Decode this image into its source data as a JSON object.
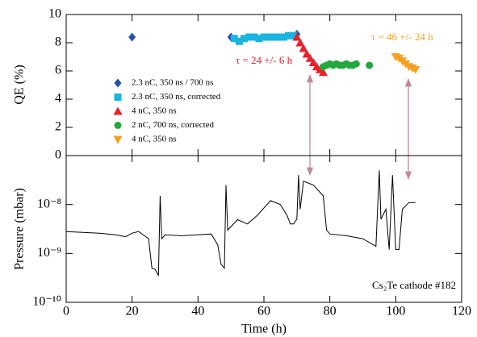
{
  "chart_data": [
    {
      "type": "scatter",
      "ylabel": "QE (%)",
      "xlim": [
        0,
        120
      ],
      "ylim": [
        0,
        10
      ],
      "yticks": [
        0,
        2,
        4,
        6,
        8,
        10
      ],
      "legend": "upper left",
      "series": [
        {
          "name": "2.3 nC, 350 ns / 700 ns",
          "color": "#2a4fa8",
          "marker": "diamond",
          "x": [
            20,
            50,
            70
          ],
          "values": [
            8.4,
            8.4,
            8.6
          ]
        },
        {
          "name": "2.3 nC, 350 ns, corrected",
          "color": "#1ab4e0",
          "marker": "square",
          "x": [
            51,
            52.5,
            54,
            55.5,
            57,
            58.5,
            60,
            61.5,
            63,
            64.5,
            66,
            67.5,
            69
          ],
          "values": [
            8.3,
            8.1,
            8.3,
            8.4,
            8.4,
            8.3,
            8.4,
            8.4,
            8.4,
            8.4,
            8.4,
            8.5,
            8.5
          ]
        },
        {
          "name": "4 nC, 350 ns",
          "color": "#e8202a",
          "marker": "triangle",
          "x": [
            70,
            71,
            72,
            73,
            74,
            75,
            76,
            77,
            78
          ],
          "values": [
            8.4,
            8.0,
            7.6,
            7.2,
            6.9,
            6.6,
            6.3,
            6.1,
            5.9
          ]
        },
        {
          "name": "2 nC, 700 ns, corrected",
          "color": "#22a83c",
          "marker": "circle",
          "x": [
            78,
            79,
            80,
            81,
            82,
            83,
            84,
            85,
            86,
            87,
            88,
            92
          ],
          "values": [
            6.3,
            6.4,
            6.5,
            6.4,
            6.5,
            6.4,
            6.4,
            6.5,
            6.4,
            6.4,
            6.5,
            6.4
          ]
        },
        {
          "name": "4 nC, 350 ns",
          "color": "#f5a020",
          "marker": "triangle-down",
          "x": [
            100,
            101,
            102,
            103,
            104,
            105,
            106
          ],
          "values": [
            7.0,
            6.9,
            6.7,
            6.5,
            6.3,
            6.2,
            6.1
          ]
        }
      ],
      "annotations": [
        "τ = 24 +/- 6 h",
        "τ = 46 +/- 24 h"
      ]
    },
    {
      "type": "line",
      "xlabel": "Time (h)",
      "ylabel": "Pressure (mbar)",
      "xlim": [
        0,
        120
      ],
      "xticks": [
        0,
        20,
        40,
        60,
        80,
        100,
        120
      ],
      "ylim": [
        1e-10,
        1e-07
      ],
      "log_y": true,
      "color": "#000000",
      "yticks": [
        {
          "value": 1e-10,
          "label": "10⁻¹⁰"
        },
        {
          "value": 1e-09,
          "label": "10⁻⁹"
        },
        {
          "value": 1e-08,
          "label": "10⁻⁸"
        }
      ],
      "x": [
        0,
        10,
        15,
        18,
        20,
        22,
        25,
        26,
        27,
        28,
        28.5,
        29,
        30,
        35,
        40,
        44,
        46,
        47,
        48,
        48.5,
        49,
        52,
        55,
        58,
        62,
        65,
        67,
        68,
        69,
        70,
        70.5,
        71,
        72,
        75,
        78,
        79,
        80,
        85,
        90,
        94,
        95,
        95.5,
        97,
        98,
        99,
        100,
        101,
        102,
        104,
        106
      ],
      "values": [
        2.8e-09,
        2.6e-09,
        2.4e-09,
        2.2e-09,
        2.6e-09,
        2.8e-09,
        2e-09,
        5e-10,
        4.7e-10,
        3.5e-10,
        1.5e-08,
        2e-09,
        2.4e-09,
        2.3e-09,
        2.4e-09,
        2.5e-09,
        1.5e-09,
        6e-10,
        5e-10,
        2.5e-08,
        3e-09,
        4.9e-09,
        4e-09,
        6e-09,
        1.2e-08,
        1e-08,
        6e-09,
        4e-09,
        4e-09,
        5e-09,
        4e-08,
        8e-09,
        3e-08,
        2.5e-08,
        1.5e-08,
        3e-09,
        2.5e-09,
        2.3e-09,
        2e-09,
        1.4e-09,
        5e-08,
        5e-09,
        8e-09,
        1.2e-09,
        4e-08,
        1.2e-09,
        1.2e-09,
        8e-09,
        1.1e-08,
        1.1e-08
      ],
      "annotations": [
        "Cs₂Te cathode #182"
      ]
    }
  ]
}
